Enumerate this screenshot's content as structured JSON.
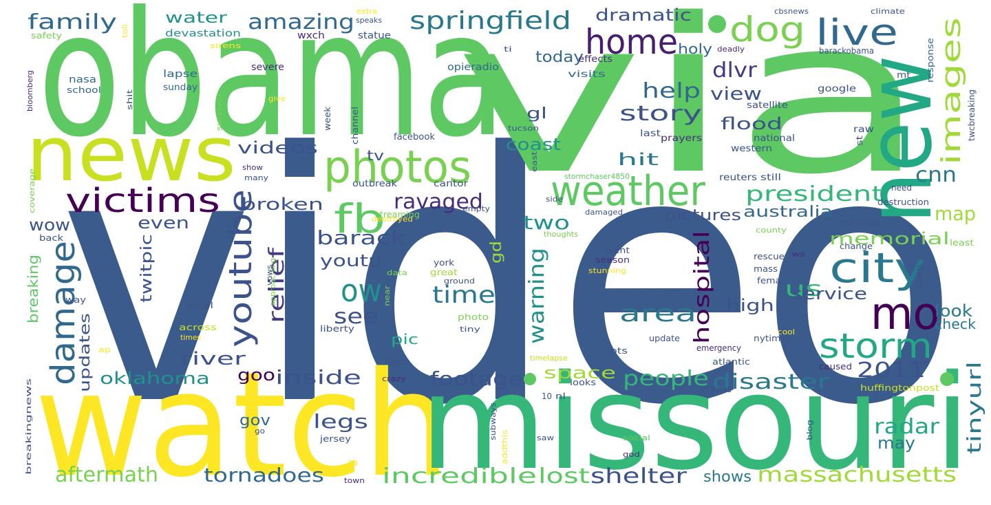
{
  "words": [
    {
      "text": "video",
      "color": "#3b5b8c"
    },
    {
      "text": "via",
      "color": "#5ec962"
    },
    {
      "text": "obama",
      "color": "#5ec962"
    },
    {
      "text": "watch",
      "color": "#fde725"
    },
    {
      "text": "missouri",
      "color": "#35b779"
    },
    {
      "text": "news",
      "color": "#c8e020"
    },
    {
      "text": "new",
      "color": "#22a884"
    },
    {
      "text": "photos",
      "color": "#7ad151"
    },
    {
      "text": "weather",
      "color": "#5ec962"
    },
    {
      "text": "home",
      "color": "#481f70"
    },
    {
      "text": "dog",
      "color": "#7ad151"
    },
    {
      "text": "live",
      "color": "#31688e"
    },
    {
      "text": "city",
      "color": "#2a788e"
    },
    {
      "text": "mo",
      "color": "#440154"
    },
    {
      "text": "storm",
      "color": "#22a884"
    },
    {
      "text": "victims",
      "color": "#440154"
    },
    {
      "text": "damage",
      "color": "#31688e"
    },
    {
      "text": "youtube",
      "color": "#3b528b"
    },
    {
      "text": "fb",
      "color": "#5ec962"
    },
    {
      "text": "ow",
      "color": "#21918c"
    },
    {
      "text": "springfield",
      "color": "#2a788e"
    },
    {
      "text": "amazing",
      "color": "#31688e"
    },
    {
      "text": "images",
      "color": "#a0da39"
    },
    {
      "text": "family",
      "color": "#31688e"
    },
    {
      "text": "water",
      "color": "#21918c"
    },
    {
      "text": "dramatic",
      "color": "#3b528b"
    },
    {
      "text": "today",
      "color": "#31688e"
    },
    {
      "text": "help",
      "color": "#31688e"
    },
    {
      "text": "dlvr",
      "color": "#443983"
    },
    {
      "text": "view",
      "color": "#3b528b"
    },
    {
      "text": "story",
      "color": "#3b528b"
    },
    {
      "text": "videos",
      "color": "#3b528b"
    },
    {
      "text": "hit",
      "color": "#2a788e"
    },
    {
      "text": "coast",
      "color": "#21918c"
    },
    {
      "text": "president",
      "color": "#35b779"
    },
    {
      "text": "gl",
      "color": "#3b528b"
    },
    {
      "text": "flood",
      "color": "#3b528b"
    },
    {
      "text": "cnn",
      "color": "#2a788e"
    },
    {
      "text": "ravaged",
      "color": "#472d7b"
    },
    {
      "text": "broken",
      "color": "#3b528b"
    },
    {
      "text": "even",
      "color": "#3b528b"
    },
    {
      "text": "wow",
      "color": "#3b528b"
    },
    {
      "text": "barack",
      "color": "#3b528b"
    },
    {
      "text": "relief",
      "color": "#443983"
    },
    {
      "text": "youtu",
      "color": "#3b528b"
    },
    {
      "text": "two",
      "color": "#21918c"
    },
    {
      "text": "map",
      "color": "#a0da39"
    },
    {
      "text": "memorial",
      "color": "#7ad151"
    },
    {
      "text": "australia",
      "color": "#31688e"
    },
    {
      "text": "pictures",
      "color": "#3b528b"
    },
    {
      "text": "time",
      "color": "#2a788e"
    },
    {
      "text": "twitpic",
      "color": "#3b528b"
    },
    {
      "text": "see",
      "color": "#3b528b"
    },
    {
      "text": "gd",
      "color": "#a0da39"
    },
    {
      "text": "warning",
      "color": "#21918c"
    },
    {
      "text": "hospital",
      "color": "#440154"
    },
    {
      "text": "area",
      "color": "#2a788e"
    },
    {
      "text": "us",
      "color": "#35b779"
    },
    {
      "text": "service",
      "color": "#3b528b"
    },
    {
      "text": "look",
      "color": "#2a788e"
    },
    {
      "text": "check",
      "color": "#2a788e"
    },
    {
      "text": "high",
      "color": "#3b528b"
    },
    {
      "text": "river",
      "color": "#3b528b"
    },
    {
      "text": "oklahoma",
      "color": "#21918c"
    },
    {
      "text": "pic",
      "color": "#22a884"
    },
    {
      "text": "updates",
      "color": "#3b528b"
    },
    {
      "text": "inside",
      "color": "#3b528b"
    },
    {
      "text": "goo",
      "color": "#440154"
    },
    {
      "text": "footage",
      "color": "#3b528b"
    },
    {
      "text": "space",
      "color": "#a0da39"
    },
    {
      "text": "people",
      "color": "#35b779"
    },
    {
      "text": "disaster",
      "color": "#2a788e"
    },
    {
      "text": "2011",
      "color": "#3b528b"
    },
    {
      "text": "tinyurl",
      "color": "#2a788e"
    },
    {
      "text": "radar",
      "color": "#22a884"
    },
    {
      "text": "may",
      "color": "#2a788e"
    },
    {
      "text": "legs",
      "color": "#3b528b"
    },
    {
      "text": "gov",
      "color": "#31688e"
    },
    {
      "text": "aftermath",
      "color": "#7ad151"
    },
    {
      "text": "tornadoes",
      "color": "#31688e"
    },
    {
      "text": "incredible",
      "color": "#5ec962"
    },
    {
      "text": "lost",
      "color": "#5ec962"
    },
    {
      "text": "shelter",
      "color": "#3b528b"
    },
    {
      "text": "shows",
      "color": "#2a788e"
    },
    {
      "text": "massachusetts",
      "color": "#a0da39"
    },
    {
      "text": "breaking",
      "color": "#5ec962"
    },
    {
      "text": "tv",
      "color": "#3b528b"
    },
    {
      "text": "holy",
      "color": "#31688e"
    },
    {
      "text": "severe",
      "color": "#472d7b"
    },
    {
      "text": "lapse",
      "color": "#31688e"
    },
    {
      "text": "sunday",
      "color": "#31688e"
    },
    {
      "text": "nasa",
      "color": "#31688e"
    },
    {
      "text": "school",
      "color": "#31688e"
    },
    {
      "text": "opieradio",
      "color": "#31688e"
    },
    {
      "text": "visits",
      "color": "#31688e"
    },
    {
      "text": "devastation",
      "color": "#21918c"
    },
    {
      "text": "wxch",
      "color": "#472d7b"
    },
    {
      "text": "statue",
      "color": "#3b528b"
    },
    {
      "text": "effects",
      "color": "#472d7b"
    },
    {
      "text": "deadly",
      "color": "#472d7b"
    },
    {
      "text": "barackobama",
      "color": "#3b528b"
    },
    {
      "text": "mt",
      "color": "#3b528b"
    },
    {
      "text": "response",
      "color": "#31688e"
    },
    {
      "text": "google",
      "color": "#3b528b"
    },
    {
      "text": "satellite",
      "color": "#3b528b"
    },
    {
      "text": "tucson",
      "color": "#3b528b"
    },
    {
      "text": "facebook",
      "color": "#3b528b"
    },
    {
      "text": "channel",
      "color": "#3b528b"
    },
    {
      "text": "week",
      "color": "#3b528b"
    },
    {
      "text": "last",
      "color": "#3b528b"
    },
    {
      "text": "national",
      "color": "#3b528b"
    },
    {
      "text": "prayers",
      "color": "#472d7b"
    },
    {
      "text": "western",
      "color": "#3b528b"
    },
    {
      "text": "raw",
      "color": "#3b528b"
    },
    {
      "text": "st",
      "color": "#3b528b"
    },
    {
      "text": "twcbreaking",
      "color": "#3b528b"
    },
    {
      "text": "east",
      "color": "#3b528b"
    },
    {
      "text": "show",
      "color": "#472d7b"
    },
    {
      "text": "many",
      "color": "#3b528b"
    },
    {
      "text": "outbreak",
      "color": "#3b528b"
    },
    {
      "text": "cantor",
      "color": "#3b528b"
    },
    {
      "text": "reuters",
      "color": "#3b528b"
    },
    {
      "text": "still",
      "color": "#3b528b"
    },
    {
      "text": "stormchaser4850",
      "color": "#5ec962"
    },
    {
      "text": "need",
      "color": "#3b528b"
    },
    {
      "text": "destruction",
      "color": "#3b528b"
    },
    {
      "text": "county",
      "color": "#7ad151"
    },
    {
      "text": "continue",
      "color": "#3b528b"
    },
    {
      "text": "least",
      "color": "#7ad151"
    },
    {
      "text": "change",
      "color": "#3b528b"
    },
    {
      "text": "streaming",
      "color": "#7ad151"
    },
    {
      "text": "destroyed",
      "color": "#fde725"
    },
    {
      "text": "empty",
      "color": "#3b528b"
    },
    {
      "text": "side",
      "color": "#3b528b"
    },
    {
      "text": "damaged",
      "color": "#3b528b"
    },
    {
      "text": "thoughts",
      "color": "#7ad151"
    },
    {
      "text": "went",
      "color": "#3b528b"
    },
    {
      "text": "season",
      "color": "#472d7b"
    },
    {
      "text": "stunning",
      "color": "#fde725"
    },
    {
      "text": "rescue",
      "color": "#3b528b"
    },
    {
      "text": "mass",
      "color": "#3b528b"
    },
    {
      "text": "fema",
      "color": "#3b528b"
    },
    {
      "text": "seen",
      "color": "#3b528b"
    },
    {
      "text": "ws",
      "color": "#472d7b"
    },
    {
      "text": "york",
      "color": "#3b528b"
    },
    {
      "text": "great",
      "color": "#a0da39"
    },
    {
      "text": "ground",
      "color": "#3b528b"
    },
    {
      "text": "data",
      "color": "#7ad151"
    },
    {
      "text": "near",
      "color": "#7ad151"
    },
    {
      "text": "approaching",
      "color": "#7ad151"
    },
    {
      "text": "vows",
      "color": "#3b528b"
    },
    {
      "text": "way",
      "color": "#3b528b"
    },
    {
      "text": "back",
      "color": "#3b528b"
    },
    {
      "text": "local",
      "color": "#3b528b"
    },
    {
      "text": "photo",
      "color": "#7ad151"
    },
    {
      "text": "tiny",
      "color": "#3b528b"
    },
    {
      "text": "liberty",
      "color": "#3b528b"
    },
    {
      "text": "across",
      "color": "#c8e020"
    },
    {
      "text": "times",
      "color": "#fde725"
    },
    {
      "text": "ap",
      "color": "#fde725"
    },
    {
      "text": "update",
      "color": "#3b528b"
    },
    {
      "text": "lots",
      "color": "#3b528b"
    },
    {
      "text": "nytimes",
      "color": "#3b528b"
    },
    {
      "text": "cool",
      "color": "#fde725"
    },
    {
      "text": "emergency",
      "color": "#472d7b"
    },
    {
      "text": "timelapse",
      "color": "#c8e020"
    },
    {
      "text": "atlantic",
      "color": "#3b528b"
    },
    {
      "text": "caused",
      "color": "#472d7b"
    },
    {
      "text": "sun",
      "color": "#3b528b"
    },
    {
      "text": "later",
      "color": "#3b528b"
    },
    {
      "text": "crazy",
      "color": "#472d7b"
    },
    {
      "text": "looks",
      "color": "#3b528b"
    },
    {
      "text": "10",
      "color": "#3b528b"
    },
    {
      "text": "nl",
      "color": "#3b528b"
    },
    {
      "text": "crawls",
      "color": "#3b528b"
    },
    {
      "text": "huffingtonpost",
      "color": "#c8e020"
    },
    {
      "text": "subways",
      "color": "#3b528b"
    },
    {
      "text": "addthis",
      "color": "#fde725"
    },
    {
      "text": "saw",
      "color": "#3b528b"
    },
    {
      "text": "social",
      "color": "#5ec962"
    },
    {
      "text": "god",
      "color": "#472d7b"
    },
    {
      "text": "blog",
      "color": "#3b528b"
    },
    {
      "text": "jersey",
      "color": "#3b528b"
    },
    {
      "text": "24",
      "color": "#fde725"
    },
    {
      "text": "town",
      "color": "#472d7b"
    },
    {
      "text": "go",
      "color": "#3b528b"
    },
    {
      "text": "breakingnews",
      "color": "#3b528b"
    },
    {
      "text": "coverage",
      "color": "#7ad151"
    },
    {
      "text": "bloomberg",
      "color": "#472d7b"
    },
    {
      "text": "shit",
      "color": "#3b528b"
    },
    {
      "text": "survivor",
      "color": "#7ad151"
    },
    {
      "text": "give",
      "color": "#fde725"
    },
    {
      "text": "safety",
      "color": "#7ad151"
    },
    {
      "text": "toll",
      "color": "#fde725"
    },
    {
      "text": "sirens",
      "color": "#fde725"
    },
    {
      "text": "extra",
      "color": "#fde725"
    },
    {
      "text": "speaks",
      "color": "#3b528b"
    },
    {
      "text": "cbsnews",
      "color": "#3b528b"
    },
    {
      "text": "climate",
      "color": "#3b528b"
    },
    {
      "text": "ti",
      "color": "#3b528b"
    }
  ]
}
